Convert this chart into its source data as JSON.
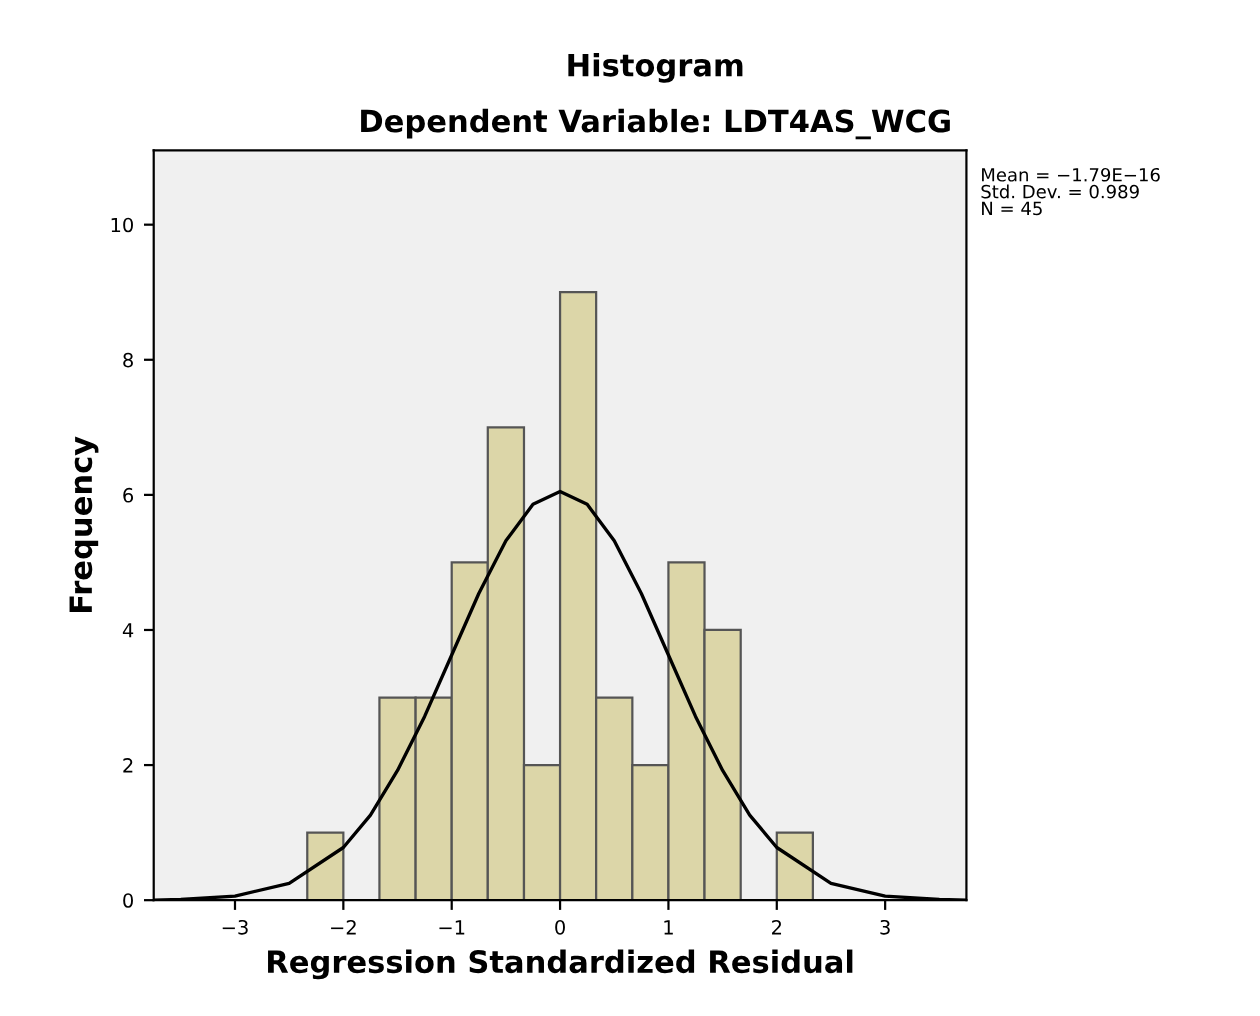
{
  "chart_data": {
    "type": "histogram",
    "title": "Histogram",
    "subtitle": "Dependent Variable: LDT4AS_WCG",
    "xlabel": "Regression Standardized Residual",
    "ylabel": "Frequency",
    "bins": [
      -2.333,
      -2,
      -1.667,
      -1.333,
      -1,
      -0.667,
      -0.333,
      0,
      0.333,
      0.667,
      1,
      1.333,
      1.667,
      2,
      2.333
    ],
    "series": [
      {
        "color": "#dcd6a8",
        "values": [
          1,
          0,
          3,
          3,
          5,
          7,
          2,
          9,
          3,
          2,
          5,
          4,
          0,
          1
        ]
      },
      {
        "type": "line",
        "color": "#000000",
        "x": [
          -3.75,
          -3.5,
          -3,
          -2.5,
          -2,
          -1.75,
          -1.5,
          -1.25,
          -1,
          -0.75,
          -0.5,
          -0.25,
          0,
          0.25,
          0.5,
          0.75,
          1,
          1.25,
          1.5,
          1.75,
          2,
          2.5,
          3,
          3.5,
          3.75
        ],
        "values": [
          0,
          0.01,
          0.06,
          0.25,
          0.78,
          1.26,
          1.92,
          2.72,
          3.63,
          4.54,
          5.32,
          5.86,
          6.05,
          5.86,
          5.32,
          4.54,
          3.63,
          2.72,
          1.92,
          1.26,
          0.78,
          0.25,
          0.06,
          0.01,
          0
        ]
      }
    ],
    "xlim": [
      -3.75,
      3.75
    ],
    "ylim": [
      0,
      11.1
    ],
    "xticks": [
      {
        "value": -3,
        "label": "−3"
      },
      {
        "value": -2,
        "label": "−2"
      },
      {
        "value": -1,
        "label": "−1"
      },
      0,
      1,
      2,
      3
    ],
    "yticks": [
      0,
      2,
      4,
      6,
      8,
      10
    ],
    "annotations": [
      "Mean = −1.79E−16\nStd. Dev. = 0.989\nN = 45"
    ]
  }
}
